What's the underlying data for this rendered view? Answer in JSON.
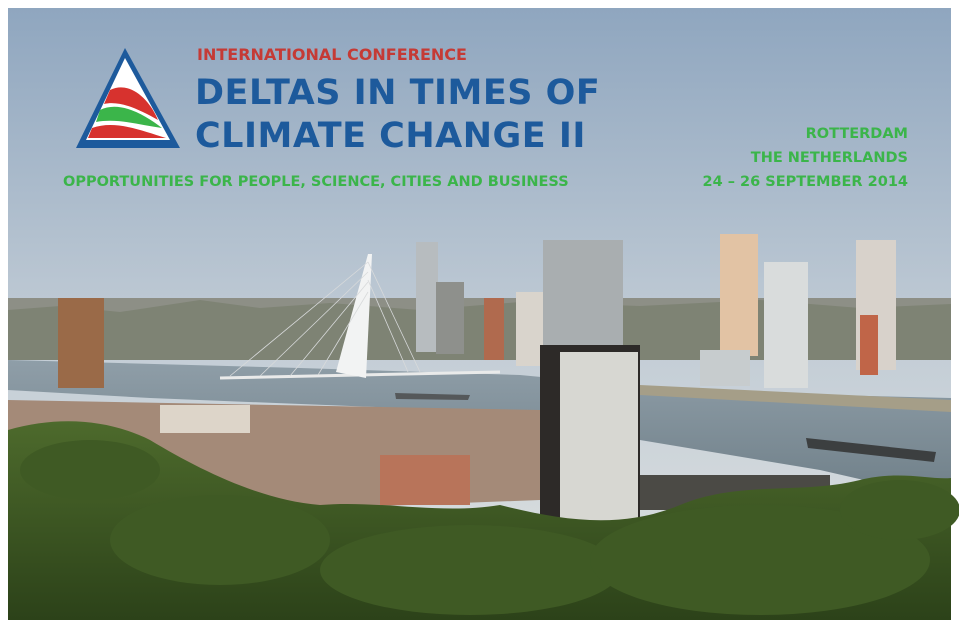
{
  "header": {
    "kicker": "INTERNATIONAL CONFERENCE",
    "title_lines": [
      "DELTAS IN TIMES OF",
      "CLIMATE CHANGE II"
    ],
    "subtitle": "OPPORTUNITIES FOR PEOPLE, SCIENCE, CITIES AND BUSINESS"
  },
  "event": {
    "city": "ROTTERDAM",
    "country": "THE NETHERLANDS",
    "dates": "24 – 26 SEPTEMBER 2014"
  }
}
